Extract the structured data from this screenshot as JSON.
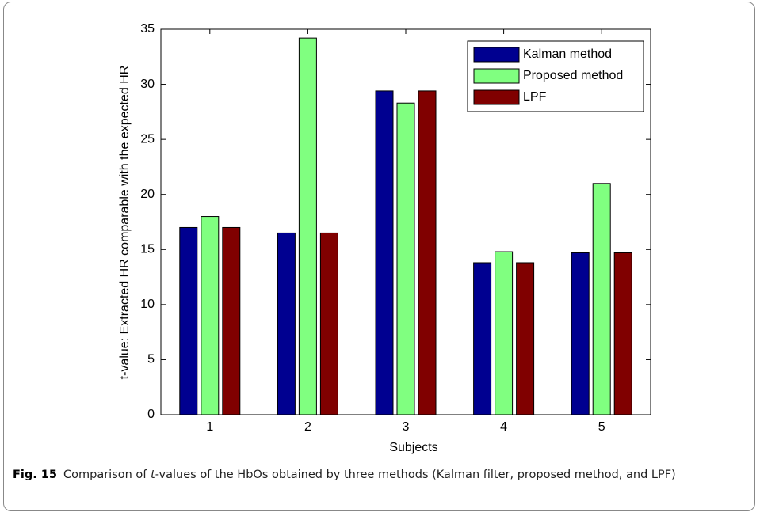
{
  "chart_data": {
    "type": "bar",
    "ylabel": "t-value: Extracted HR comparable with the expected HR",
    "xlabel": "Subjects",
    "categories": [
      "1",
      "2",
      "3",
      "4",
      "5"
    ],
    "series": [
      {
        "name": "Kalman method",
        "color": "#000090",
        "values": [
          17.0,
          16.5,
          29.4,
          13.8,
          14.7
        ]
      },
      {
        "name": "Proposed method",
        "color": "#80ff80",
        "values": [
          18.0,
          34.2,
          28.3,
          14.8,
          21.0
        ]
      },
      {
        "name": "LPF",
        "color": "#800000",
        "values": [
          17.0,
          16.5,
          29.4,
          13.8,
          14.7
        ]
      }
    ],
    "ylim": [
      0,
      35
    ],
    "yticks": [
      0,
      5,
      10,
      15,
      20,
      25,
      30,
      35
    ],
    "legend": "upper-right"
  },
  "caption": {
    "label": "Fig. 15",
    "parts": [
      "Comparison of ",
      "t",
      "-values of the HbOs obtained by three methods (Kalman filter, proposed method, and LPF)"
    ]
  }
}
